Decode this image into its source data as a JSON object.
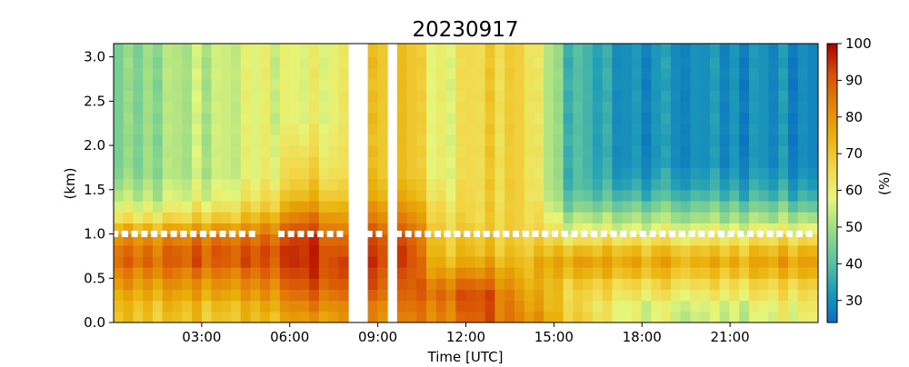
{
  "chart_data": {
    "type": "heatmap",
    "title": "20230917",
    "xlabel": "Time [UTC]",
    "ylabel": "(km)",
    "colorbar_label": "(%)",
    "x_range_hours": [
      0,
      24
    ],
    "y_range_km": [
      0,
      3.15
    ],
    "x_ticks": [
      {
        "hour": 3,
        "label": "03:00"
      },
      {
        "hour": 6,
        "label": "06:00"
      },
      {
        "hour": 9,
        "label": "09:00"
      },
      {
        "hour": 12,
        "label": "12:00"
      },
      {
        "hour": 15,
        "label": "15:00"
      },
      {
        "hour": 18,
        "label": "18:00"
      },
      {
        "hour": 21,
        "label": "21:00"
      }
    ],
    "y_ticks": [
      {
        "value": 0.0,
        "label": "0.0"
      },
      {
        "value": 0.5,
        "label": "0.5"
      },
      {
        "value": 1.0,
        "label": "1.0"
      },
      {
        "value": 1.5,
        "label": "1.5"
      },
      {
        "value": 2.0,
        "label": "2.0"
      },
      {
        "value": 2.5,
        "label": "2.5"
      },
      {
        "value": 3.0,
        "label": "3.0"
      }
    ],
    "colorbar_range": [
      24,
      100
    ],
    "colorbar_ticks": [
      {
        "value": 30,
        "label": "30"
      },
      {
        "value": 40,
        "label": "40"
      },
      {
        "value": 50,
        "label": "50"
      },
      {
        "value": 60,
        "label": "60"
      },
      {
        "value": 70,
        "label": "70"
      },
      {
        "value": 80,
        "label": "80"
      },
      {
        "value": 90,
        "label": "90"
      },
      {
        "value": 100,
        "label": "100"
      }
    ],
    "colormap": [
      "#0a6fc2",
      "#1d9bb8",
      "#5ec3a0",
      "#9bdc86",
      "#e6f67a",
      "#f3d648",
      "#e9b10a",
      "#e48408",
      "#d85105",
      "#ae0000"
    ],
    "grid": false,
    "height_bin_km": 0.125,
    "time_step_hours": 0.333,
    "missing_intervals_hours": [
      [
        8.0,
        8.5
      ],
      [
        9.33,
        9.67
      ]
    ],
    "marker_height_km": 1.0,
    "marker_color": "#ffffff",
    "profile_keyframes": [
      {
        "hour": 0.0,
        "values": [
          70,
          72,
          74,
          78,
          82,
          86,
          85,
          80,
          72,
          62,
          56,
          52,
          48,
          45,
          44,
          44,
          44,
          44,
          44,
          44,
          44,
          44,
          44,
          44,
          44,
          44
        ]
      },
      {
        "hour": 1.5,
        "values": [
          71,
          73,
          76,
          80,
          84,
          88,
          87,
          82,
          74,
          64,
          58,
          54,
          52,
          50,
          50,
          50,
          50,
          50,
          50,
          50,
          50,
          50,
          50,
          50,
          50,
          50
        ]
      },
      {
        "hour": 3.5,
        "values": [
          70,
          72,
          76,
          80,
          84,
          89,
          90,
          86,
          78,
          68,
          62,
          58,
          56,
          54,
          54,
          54,
          54,
          54,
          54,
          54,
          54,
          54,
          54,
          54,
          54,
          54
        ]
      },
      {
        "hour": 5.0,
        "values": [
          72,
          74,
          78,
          82,
          86,
          90,
          90,
          86,
          80,
          72,
          66,
          62,
          60,
          58,
          58,
          58,
          58,
          58,
          58,
          58,
          58,
          58,
          58,
          58,
          58,
          58
        ]
      },
      {
        "hour": 6.5,
        "values": [
          80,
          84,
          88,
          92,
          94,
          96,
          96,
          95,
          92,
          86,
          80,
          74,
          70,
          68,
          66,
          64,
          62,
          60,
          58,
          58,
          58,
          58,
          58,
          58,
          58,
          58
        ]
      },
      {
        "hour": 8.0,
        "values": [
          78,
          80,
          84,
          88,
          90,
          90,
          88,
          84,
          80,
          75,
          70,
          66,
          64,
          62,
          60,
          60,
          60,
          60,
          60,
          60,
          60,
          60,
          60,
          60,
          60,
          60
        ]
      },
      {
        "hour": 9.0,
        "values": [
          80,
          82,
          86,
          88,
          90,
          92,
          92,
          90,
          86,
          82,
          78,
          74,
          72,
          70,
          70,
          70,
          70,
          70,
          70,
          70,
          70,
          70,
          70,
          70,
          70,
          70
        ]
      },
      {
        "hour": 10.0,
        "values": [
          84,
          86,
          88,
          90,
          92,
          94,
          94,
          92,
          88,
          84,
          80,
          76,
          74,
          72,
          72,
          72,
          72,
          72,
          72,
          72,
          72,
          72,
          72,
          72,
          72,
          72
        ]
      },
      {
        "hour": 11.0,
        "values": [
          82,
          84,
          86,
          84,
          78,
          74,
          72,
          70,
          68,
          66,
          64,
          62,
          60,
          58,
          58,
          58,
          58,
          58,
          58,
          58,
          58,
          58,
          58,
          58,
          58,
          58
        ]
      },
      {
        "hour": 12.5,
        "values": [
          90,
          92,
          92,
          88,
          82,
          76,
          72,
          70,
          68,
          66,
          66,
          66,
          66,
          66,
          66,
          66,
          66,
          66,
          66,
          66,
          66,
          66,
          66,
          66,
          66,
          66
        ]
      },
      {
        "hour": 14.0,
        "values": [
          82,
          80,
          78,
          76,
          74,
          72,
          70,
          68,
          68,
          68,
          68,
          68,
          68,
          68,
          68,
          68,
          68,
          68,
          68,
          68,
          68,
          68,
          68,
          68,
          68,
          68
        ]
      },
      {
        "hour": 15.5,
        "values": [
          70,
          68,
          68,
          70,
          74,
          78,
          72,
          64,
          58,
          52,
          46,
          42,
          40,
          40,
          40,
          40,
          40,
          40,
          40,
          40,
          40,
          40,
          40,
          40,
          40,
          40
        ]
      },
      {
        "hour": 17.5,
        "values": [
          58,
          58,
          62,
          66,
          72,
          76,
          72,
          64,
          56,
          50,
          44,
          38,
          34,
          32,
          30,
          30,
          30,
          30,
          30,
          30,
          30,
          30,
          30,
          30,
          30,
          30
        ]
      },
      {
        "hour": 20.0,
        "values": [
          54,
          56,
          60,
          64,
          70,
          74,
          70,
          62,
          56,
          50,
          44,
          38,
          34,
          32,
          30,
          30,
          30,
          30,
          30,
          30,
          30,
          30,
          30,
          30,
          30,
          30
        ]
      },
      {
        "hour": 22.0,
        "values": [
          56,
          58,
          62,
          66,
          72,
          76,
          72,
          64,
          58,
          50,
          44,
          38,
          34,
          32,
          30,
          30,
          30,
          30,
          30,
          30,
          30,
          30,
          30,
          30,
          30,
          30
        ]
      },
      {
        "hour": 24.0,
        "values": [
          60,
          62,
          64,
          68,
          74,
          78,
          74,
          66,
          58,
          50,
          42,
          36,
          32,
          30,
          28,
          28,
          28,
          28,
          28,
          28,
          28,
          28,
          28,
          28,
          28,
          28
        ]
      }
    ],
    "column_offsets": [
      0,
      4,
      -3,
      2,
      -5,
      3,
      1,
      -2,
      5,
      -4,
      2,
      0,
      -3,
      4,
      -1,
      3,
      -5,
      2,
      1,
      -2,
      4,
      -3,
      0,
      3,
      -4,
      2,
      5,
      -1,
      -3,
      1
    ]
  }
}
